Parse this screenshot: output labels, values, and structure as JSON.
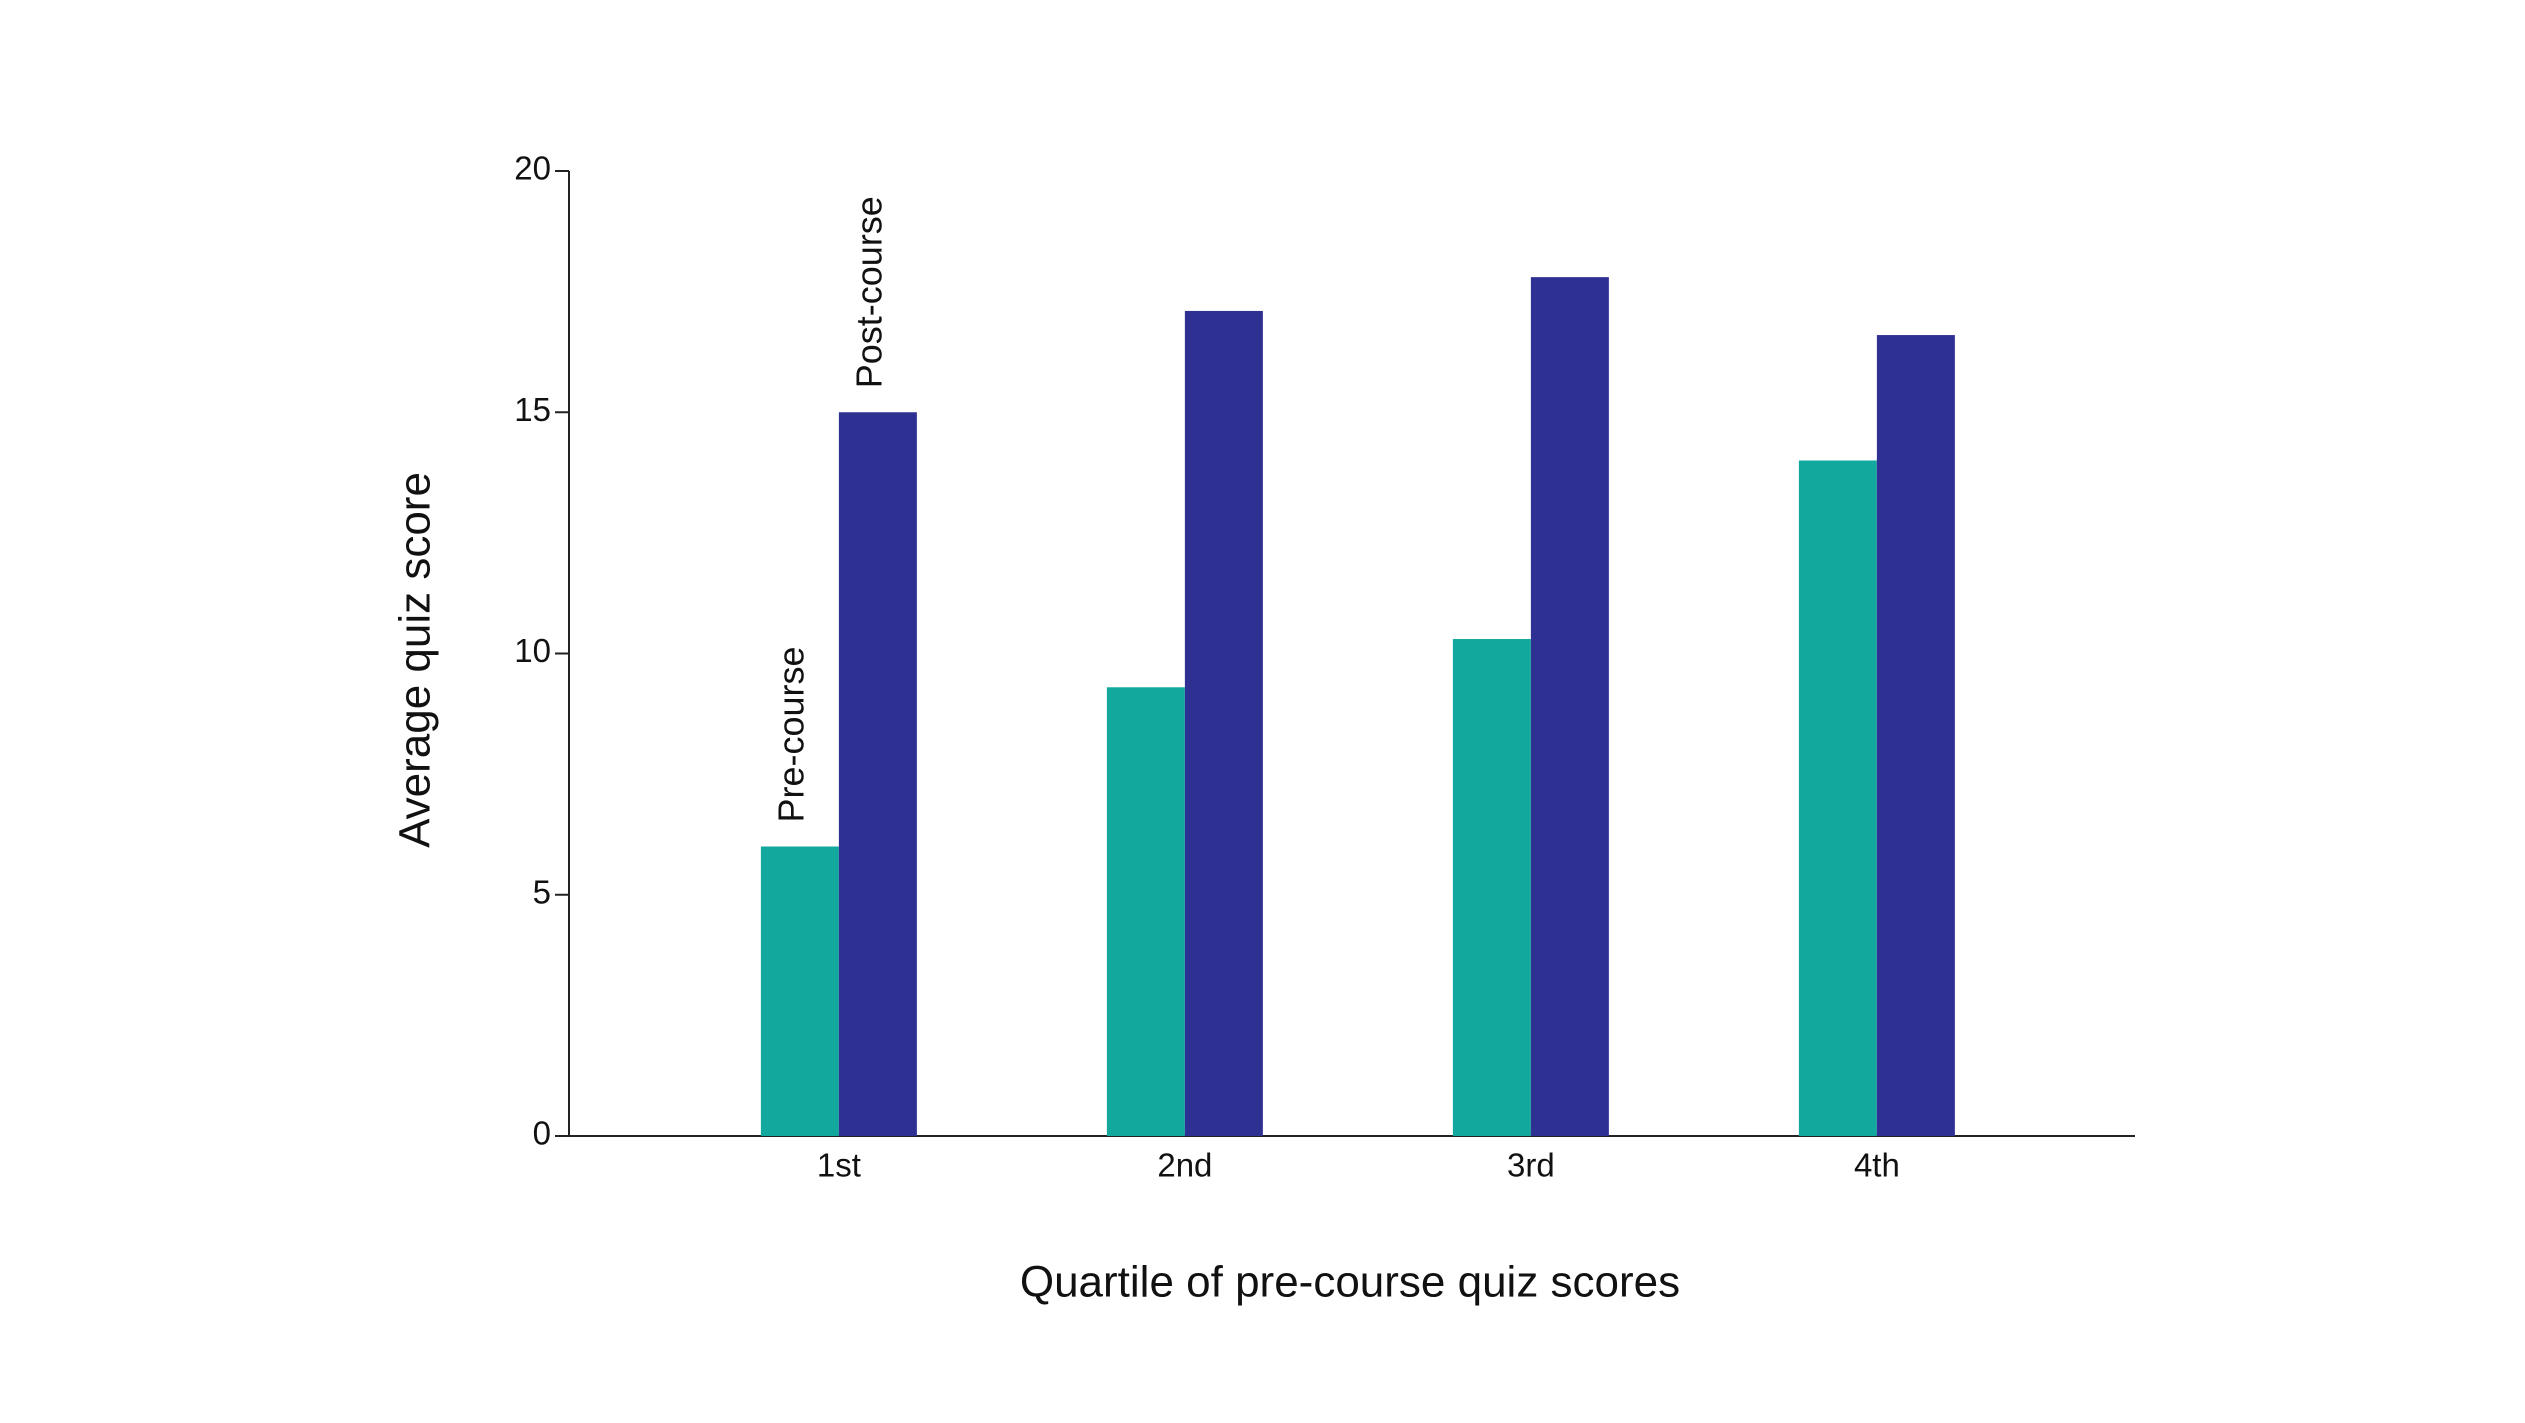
{
  "chart_data": {
    "type": "bar",
    "x_label": "Quartile of pre-course quiz scores",
    "y_label": "Average quiz score",
    "categories": [
      "1st",
      "2nd",
      "3rd",
      "4th"
    ],
    "series": [
      {
        "name": "Pre-course",
        "color": "#13a89e",
        "values": [
          6.0,
          9.3,
          10.3,
          14.0
        ]
      },
      {
        "name": "Post-course",
        "color": "#2e3192",
        "values": [
          15.0,
          17.1,
          17.8,
          16.6
        ]
      }
    ],
    "ylim": [
      0,
      20
    ],
    "yticks": [
      0,
      5,
      10,
      15,
      20
    ],
    "grid": false
  }
}
